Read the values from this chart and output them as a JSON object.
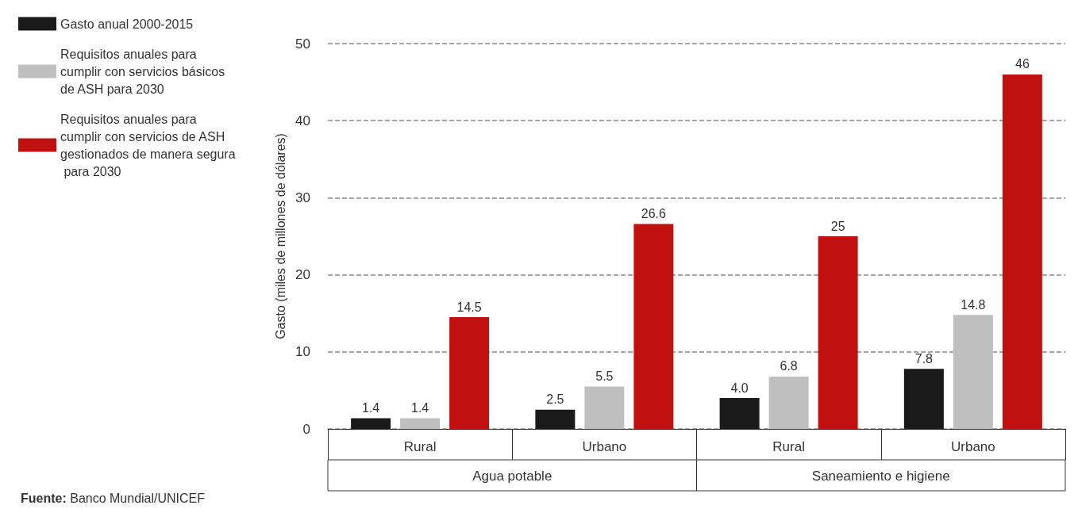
{
  "chart_data": {
    "type": "bar",
    "ylabel": "Gasto (miles de millones de dólares)",
    "categories": [
      "Rural",
      "Urbano",
      "Rural",
      "Urbano"
    ],
    "series": [
      {
        "name": "Gasto anual 2000-2015",
        "color": "#1a1a1a",
        "values": [
          1.4,
          2.5,
          4.0,
          7.8
        ],
        "value_labels": [
          "1.4",
          "2.5",
          "4.0",
          "7.8"
        ]
      },
      {
        "name": "Requisitos anuales para cumplir con servicios básicos de ASH para 2030",
        "color": "#bfbfbf",
        "values": [
          1.4,
          5.5,
          6.8,
          14.8
        ],
        "value_labels": [
          "1.4",
          "5.5",
          "6.8",
          "14.8"
        ]
      },
      {
        "name": "Requisitos anuales para cumplir con servicios de ASH gestionados de manera segura para 2030",
        "color": "#c0100f",
        "values": [
          14.5,
          26.6,
          25,
          46
        ],
        "value_labels": [
          "14.5",
          "26.6",
          "25",
          "46"
        ]
      }
    ],
    "ylim": [
      0,
      50
    ],
    "yticks": [
      0,
      10,
      20,
      30,
      40,
      50
    ],
    "grid": "y",
    "legend": "top left",
    "annotations": [
      "Agua potable",
      "Saneamiento e higiene",
      "Fuente: Banco Mundial/UNICEF"
    ]
  }
}
